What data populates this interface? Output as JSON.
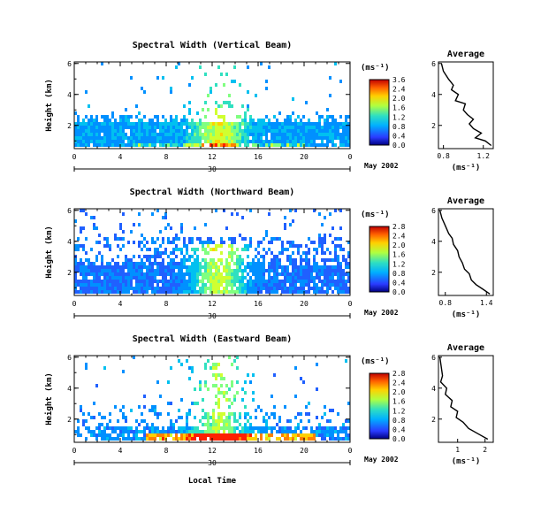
{
  "chart_data": [
    {
      "type": "heatmap",
      "title": "Spectral Width (Vertical Beam)",
      "ylabel": "Height (km)",
      "xlabel": "",
      "x_ticks": [
        "0",
        "4",
        "8",
        "12",
        "16",
        "20",
        "0"
      ],
      "y_ticks": [
        "2",
        "4",
        "6"
      ],
      "date_tick": "30",
      "date_label": "May 2002",
      "xlim": [
        0,
        24
      ],
      "ylim": [
        0.5,
        6.1
      ],
      "colorbar": {
        "unit": "(ms⁻¹)",
        "ticks": [
          "3.6",
          "2.4",
          "2.0",
          "1.6",
          "1.2",
          "0.8",
          "0.4",
          "0.0"
        ]
      },
      "profile": {
        "title": "Average",
        "xlabel": "(ms⁻¹)",
        "x_ticks": [
          "0.8",
          "1.2"
        ],
        "y_ticks": [
          "2",
          "4",
          "6"
        ],
        "xlim": [
          0.75,
          1.3
        ],
        "ylim": [
          0.5,
          6.1
        ],
        "points": [
          [
            0.78,
            6.0
          ],
          [
            0.8,
            5.5
          ],
          [
            0.85,
            5.0
          ],
          [
            0.9,
            4.6
          ],
          [
            0.88,
            4.3
          ],
          [
            0.95,
            4.0
          ],
          [
            0.92,
            3.6
          ],
          [
            1.02,
            3.4
          ],
          [
            1.0,
            3.0
          ],
          [
            1.04,
            2.7
          ],
          [
            1.1,
            2.4
          ],
          [
            1.06,
            2.1
          ],
          [
            1.1,
            1.8
          ],
          [
            1.18,
            1.5
          ],
          [
            1.12,
            1.2
          ],
          [
            1.22,
            1.0
          ],
          [
            1.28,
            0.7
          ]
        ]
      }
    },
    {
      "type": "heatmap",
      "title": "Spectral Width (Northward Beam)",
      "ylabel": "Height (km)",
      "xlabel": "",
      "x_ticks": [
        "0",
        "4",
        "8",
        "12",
        "16",
        "20",
        "0"
      ],
      "y_ticks": [
        "2",
        "4",
        "6"
      ],
      "date_tick": "30",
      "date_label": "May 2002",
      "xlim": [
        0,
        24
      ],
      "ylim": [
        0.5,
        6.1
      ],
      "colorbar": {
        "unit": "(ms⁻¹)",
        "ticks": [
          "2.8",
          "2.4",
          "2.0",
          "1.6",
          "1.2",
          "0.8",
          "0.4",
          "0.0"
        ]
      },
      "profile": {
        "title": "Average",
        "xlabel": "(ms⁻¹)",
        "x_ticks": [
          "0.8",
          "1.4"
        ],
        "y_ticks": [
          "2",
          "4",
          "6"
        ],
        "xlim": [
          0.7,
          1.5
        ],
        "ylim": [
          0.5,
          6.1
        ],
        "points": [
          [
            0.72,
            6.0
          ],
          [
            0.75,
            5.5
          ],
          [
            0.8,
            5.0
          ],
          [
            0.85,
            4.5
          ],
          [
            0.9,
            4.2
          ],
          [
            0.92,
            3.8
          ],
          [
            0.98,
            3.4
          ],
          [
            1.0,
            3.0
          ],
          [
            1.05,
            2.6
          ],
          [
            1.08,
            2.2
          ],
          [
            1.15,
            1.9
          ],
          [
            1.18,
            1.5
          ],
          [
            1.25,
            1.2
          ],
          [
            1.35,
            0.9
          ],
          [
            1.45,
            0.6
          ]
        ]
      }
    },
    {
      "type": "heatmap",
      "title": "Spectral Width (Eastward Beam)",
      "ylabel": "Height (km)",
      "xlabel": "Local Time",
      "x_ticks": [
        "0",
        "4",
        "8",
        "12",
        "16",
        "20",
        "0"
      ],
      "y_ticks": [
        "2",
        "4",
        "6"
      ],
      "date_tick": "30",
      "date_label": "May 2002",
      "xlim": [
        0,
        24
      ],
      "ylim": [
        0.5,
        6.1
      ],
      "colorbar": {
        "unit": "(ms⁻¹)",
        "ticks": [
          "2.8",
          "2.4",
          "2.0",
          "1.6",
          "1.2",
          "0.8",
          "0.4",
          "0.0"
        ]
      },
      "profile": {
        "title": "Average",
        "xlabel": "(ms⁻¹)",
        "x_ticks": [
          "1",
          "2"
        ],
        "y_ticks": [
          "2",
          "4",
          "6"
        ],
        "xlim": [
          0.3,
          2.3
        ],
        "ylim": [
          0.5,
          6.1
        ],
        "points": [
          [
            0.35,
            6.0
          ],
          [
            0.4,
            5.4
          ],
          [
            0.45,
            4.8
          ],
          [
            0.38,
            4.4
          ],
          [
            0.6,
            4.0
          ],
          [
            0.55,
            3.6
          ],
          [
            0.8,
            3.2
          ],
          [
            0.75,
            2.8
          ],
          [
            1.0,
            2.5
          ],
          [
            0.95,
            2.1
          ],
          [
            1.2,
            1.8
          ],
          [
            1.4,
            1.4
          ],
          [
            1.8,
            1.0
          ],
          [
            2.1,
            0.7
          ]
        ]
      }
    }
  ]
}
